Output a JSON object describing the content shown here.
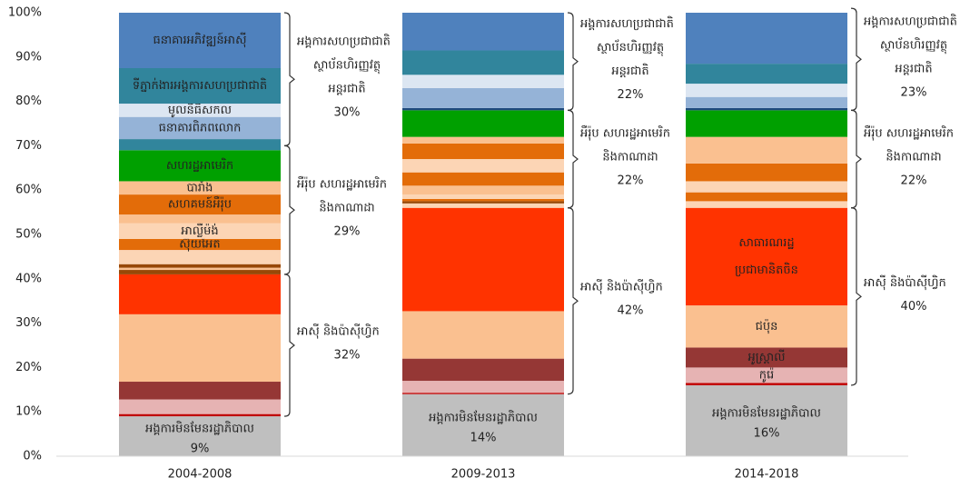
{
  "chart_data": {
    "type": "stacked_bar",
    "categories": [
      "2004-2008",
      "2009-2013",
      "2014-2018"
    ],
    "ylim": [
      0,
      100
    ],
    "yticks": [
      {
        "value": 0,
        "label": "0%"
      },
      {
        "value": 10,
        "label": "10%"
      },
      {
        "value": 20,
        "label": "20%"
      },
      {
        "value": 30,
        "label": "30%"
      },
      {
        "value": 40,
        "label": "40%"
      },
      {
        "value": 50,
        "label": "50%"
      },
      {
        "value": 60,
        "label": "60%"
      },
      {
        "value": 70,
        "label": "70%"
      },
      {
        "value": 80,
        "label": "80%"
      },
      {
        "value": 90,
        "label": "90%"
      },
      {
        "value": 100,
        "label": "100%"
      }
    ],
    "grid": false,
    "stacks": [
      {
        "segments": [
          {
            "value": 9,
            "color": "#bfbfbf"
          },
          {
            "value": 0.5,
            "color": "#c00000"
          },
          {
            "value": 3.3,
            "color": "#e6b3b3"
          },
          {
            "value": 4,
            "color": "#953735"
          },
          {
            "value": 15.2,
            "color": "#fac090"
          },
          {
            "value": 9,
            "color": "#ff3300"
          },
          {
            "value": 1,
            "color": "#984807"
          },
          {
            "value": 0.5,
            "color": "#fac090"
          },
          {
            "value": 0.8,
            "color": "#984807"
          },
          {
            "value": 3.2,
            "color": "#fcd5b5"
          },
          {
            "value": 2.5,
            "color": "#e36c09",
            "label": "ស៊ុយអែត"
          },
          {
            "value": 3.5,
            "color": "#fcd5b5",
            "label": "អាល្លឺម៉ង់"
          },
          {
            "value": 2,
            "color": "#fac090"
          },
          {
            "value": 4.5,
            "color": "#e36c09",
            "label": "សហគមន៍អឺរ៉ុប"
          },
          {
            "value": 3,
            "color": "#fac090",
            "label": "បារាំង"
          },
          {
            "value": 7,
            "color": "#00a000",
            "label": "សហរដ្ឋអាមេរិក"
          },
          {
            "value": 2.5,
            "color": "#31859c"
          },
          {
            "value": 5,
            "color": "#95b3d7",
            "label": "ធនាគារពិភពលោក"
          },
          {
            "value": 3,
            "color": "#dce6f2",
            "label": "មូលនិធិសកល"
          },
          {
            "value": 8,
            "color": "#31859c",
            "label": "ទីភ្នាក់ងារអង្គការសហប្រជាជាតិ"
          },
          {
            "value": 12.5,
            "color": "#4f81bd",
            "label": "ធនាគារអភិវឌ្ឍន៍អាស៊ី"
          }
        ],
        "groups": [
          {
            "label": [
              "អង្គការមិនមែនរដ្ឋាភិបាល"
            ],
            "value": 9,
            "value_label": "9%"
          },
          {
            "label": [
              "អាស៊ី និងប៉ាស៊ីហ្វិក"
            ],
            "value": 32,
            "value_label": "32%"
          },
          {
            "label": [
              "អឺរ៉ុប សហរដ្ឋអាមេរិក",
              "និងកាណាដា"
            ],
            "value": 29,
            "value_label": "29%"
          },
          {
            "label": [
              "អង្គការសហប្រជាជាតិ",
              "ស្ថាប័នហិរញ្ញវត្ថុ",
              "អន្តរជាតិ"
            ],
            "value": 30,
            "value_label": "30%"
          }
        ]
      },
      {
        "segments": [
          {
            "value": 14,
            "color": "#bfbfbf"
          },
          {
            "value": 0.3,
            "color": "#c00000"
          },
          {
            "value": 2.7,
            "color": "#e6b3b3"
          },
          {
            "value": 5,
            "color": "#953735"
          },
          {
            "value": 10.7,
            "color": "#fac090"
          },
          {
            "value": 23.3,
            "color": "#ff3300"
          },
          {
            "value": 1,
            "color": "#fcd5b5"
          },
          {
            "value": 0.5,
            "color": "#984807"
          },
          {
            "value": 0.5,
            "color": "#e36c09"
          },
          {
            "value": 1,
            "color": "#fcd5b5"
          },
          {
            "value": 2,
            "color": "#fac090"
          },
          {
            "value": 3,
            "color": "#e36c09"
          },
          {
            "value": 3,
            "color": "#fcd5b5"
          },
          {
            "value": 3.5,
            "color": "#e36c09"
          },
          {
            "value": 1.5,
            "color": "#fac090"
          },
          {
            "value": 6,
            "color": "#00a000"
          },
          {
            "value": 0.5,
            "color": "#1f497d"
          },
          {
            "value": 4.5,
            "color": "#95b3d7"
          },
          {
            "value": 3,
            "color": "#dce6f2"
          },
          {
            "value": 5.5,
            "color": "#31859c"
          },
          {
            "value": 8.5,
            "color": "#4f81bd"
          }
        ],
        "groups": [
          {
            "label": [
              "អង្គការមិនមែនរដ្ឋាភិបាល"
            ],
            "value": 14,
            "value_label": "14%"
          },
          {
            "label": [
              "អាស៊ី និងប៉ាស៊ីហ្វិក"
            ],
            "value": 42,
            "value_label": "42%"
          },
          {
            "label": [
              "អឺរ៉ុប សហរដ្ឋអាមេរិក",
              "និងកាណាដា"
            ],
            "value": 22,
            "value_label": "22%"
          },
          {
            "label": [
              "អង្គការសហប្រជាជាតិ",
              "ស្ថាប័នហិរញ្ញវត្ថុ",
              "អន្តរជាតិ"
            ],
            "value": 22,
            "value_label": "22%"
          }
        ]
      },
      {
        "segments": [
          {
            "value": 16,
            "color": "#bfbfbf"
          },
          {
            "value": 0.5,
            "color": "#c00000"
          },
          {
            "value": 3.5,
            "color": "#e6b3b3",
            "label": "កូរ៉េ"
          },
          {
            "value": 4.5,
            "color": "#953735",
            "label": "អូស្ត្រាលី"
          },
          {
            "value": 9.5,
            "color": "#fac090",
            "label": "ជប៉ុន"
          },
          {
            "value": 22,
            "color": "#ff3300",
            "label": [
              "សាធារណរដ្ឋ",
              "ប្រជាមានិតចិន"
            ]
          },
          {
            "value": 1.5,
            "color": "#fcd5b5"
          },
          {
            "value": 2,
            "color": "#e36c09"
          },
          {
            "value": 2.5,
            "color": "#fcd5b5"
          },
          {
            "value": 4,
            "color": "#e36c09"
          },
          {
            "value": 6,
            "color": "#fac090"
          },
          {
            "value": 6,
            "color": "#00a000"
          },
          {
            "value": 0.5,
            "color": "#1f497d"
          },
          {
            "value": 2.5,
            "color": "#95b3d7"
          },
          {
            "value": 3,
            "color": "#dce6f2"
          },
          {
            "value": 4.5,
            "color": "#31859c"
          },
          {
            "value": 11.5,
            "color": "#4f81bd"
          }
        ],
        "groups": [
          {
            "label": [
              "អង្គការមិនមែនរដ្ឋាភិបាល"
            ],
            "value": 16,
            "value_label": "16%"
          },
          {
            "label": [
              "អាស៊ី និងប៉ាស៊ីហ្វិក"
            ],
            "value": 40,
            "value_label": "40%"
          },
          {
            "label": [
              "អឺរ៉ុប សហរដ្ឋអាមេរិក",
              "និងកាណាដា"
            ],
            "value": 22,
            "value_label": "22%"
          },
          {
            "label": [
              "អង្គការសហប្រជាជាតិ",
              "ស្ថាប័នហិរញ្ញវត្ថុ",
              "អន្តរជាតិ"
            ],
            "value": 23,
            "value_label": "23%"
          }
        ]
      }
    ]
  }
}
